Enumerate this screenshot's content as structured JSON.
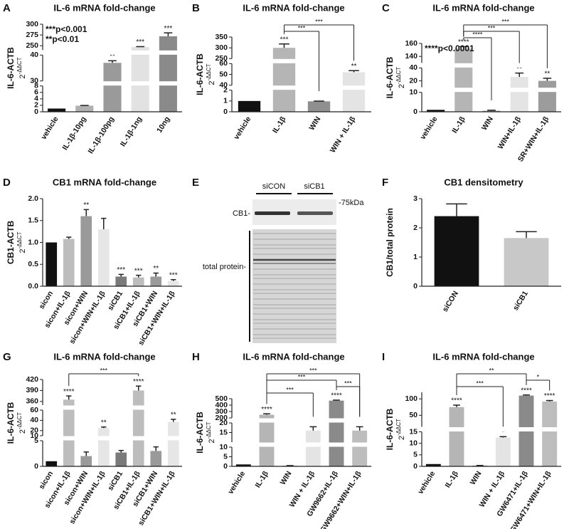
{
  "chart_data": [
    {
      "type": "bar",
      "panel": "A",
      "title": "IL-6 mRNA fold-change",
      "ylabel": "IL-6-ACTB",
      "yunit": "2",
      "yunit_exp": "-ΔΔCT",
      "categories": [
        "vehicle",
        "IL-1β-10pg",
        "IL-1β-100pg",
        "IL-1β-1ng",
        "10ng"
      ],
      "values": [
        1,
        1.9,
        37,
        247,
        272
      ],
      "errors": [
        null,
        0.05,
        0.8,
        1,
        8
      ],
      "stars": [
        null,
        null,
        "**",
        "***",
        "***"
      ],
      "colors": [
        "#111111",
        "#b0b0b0",
        "#9a9a9a",
        "#e2e2e2",
        "#8a8a8a"
      ],
      "annotations": [
        "***p<0.001",
        "**p<0.01"
      ],
      "segments": [
        {
          "ylim": [
            0,
            8
          ],
          "yticks": [
            0,
            2,
            4,
            6,
            8
          ]
        },
        {
          "ylim": [
            30,
            40
          ],
          "yticks": [
            30,
            40
          ]
        },
        {
          "ylim": [
            240,
            300
          ],
          "yticks": [
            250,
            275,
            300
          ]
        }
      ]
    },
    {
      "type": "bar",
      "panel": "B",
      "title": "IL-6 mRNA fold-change",
      "ylabel": "IL-6-ACTB",
      "yunit": "2",
      "yunit_exp": "-ΔΔCT",
      "categories": [
        "vehicle",
        "IL-1β",
        "WIN",
        "WIN + IL-1β"
      ],
      "values": [
        1,
        300,
        0.97,
        52
      ],
      "errors": [
        null,
        18,
        0.02,
        1.5
      ],
      "stars": [
        null,
        "***",
        null,
        "**"
      ],
      "colors": [
        "#111111",
        "#b5b5b5",
        "#8f8f8f",
        "#e4e4e4"
      ],
      "brackets": [
        {
          "from": 1,
          "to": 2,
          "label": "***"
        },
        {
          "from": 1,
          "to": 3,
          "label": "***"
        }
      ],
      "segments": [
        {
          "ylim": [
            0,
            2
          ],
          "yticks": [
            0,
            1,
            2
          ]
        },
        {
          "ylim": [
            40,
            60
          ],
          "yticks": [
            40,
            50,
            60
          ]
        },
        {
          "ylim": [
            250,
            350
          ],
          "yticks": [
            250,
            300,
            350
          ]
        }
      ]
    },
    {
      "type": "bar",
      "panel": "C",
      "title": "IL-6 mRNA fold-change",
      "ylabel": "IL-6-ACTB",
      "yunit": "2",
      "yunit_exp": "-ΔΔCT",
      "categories": [
        "vehicle",
        "IL-1β",
        "WIN",
        "WIN+IL-1β",
        "SR+WIN+IL-1β"
      ],
      "values": [
        1,
        152,
        0.5,
        26,
        20
      ],
      "errors": [
        null,
        3,
        0.3,
        6,
        4
      ],
      "stars": [
        null,
        "****",
        null,
        "**",
        "**"
      ],
      "colors": [
        "#111111",
        "#b5b5b5",
        "#8f8f8f",
        "#e4e4e4",
        "#9c9c9c"
      ],
      "annotations": [
        "****p<0.0001"
      ],
      "brackets": [
        {
          "from": 1,
          "to": 2,
          "label": "****"
        },
        {
          "from": 1,
          "to": 3,
          "label": "***"
        },
        {
          "from": 1,
          "to": 4,
          "label": "***"
        }
      ],
      "segments": [
        {
          "ylim": [
            0,
            10
          ],
          "yticks": [
            0,
            10
          ]
        },
        {
          "ylim": [
            10,
            40
          ],
          "yticks": [
            20,
            40
          ]
        },
        {
          "ylim": [
            130,
            160
          ],
          "yticks": [
            140,
            160
          ]
        }
      ]
    },
    {
      "type": "bar",
      "panel": "D",
      "title": "CB1 mRNA fold-change",
      "ylabel": "CB1-ACTB",
      "yunit": "2",
      "yunit_exp": "-ΔΔCT",
      "categories": [
        "sicon",
        "sicon+IL-1β",
        "sicon+WIN",
        "sicon+WIN+IL-1β",
        "siCB1",
        "siCB1+IL-1β",
        "siCB1+WIN",
        "siCB1+WIN+IL-1β"
      ],
      "values": [
        1.0,
        1.08,
        1.6,
        1.3,
        0.22,
        0.2,
        0.22,
        0.12
      ],
      "errors": [
        null,
        0.04,
        0.15,
        0.25,
        0.05,
        0.05,
        0.08,
        0.03
      ],
      "stars": [
        null,
        null,
        "**",
        null,
        "***",
        "***",
        "**",
        "***"
      ],
      "colors": [
        "#111111",
        "#bdbdbd",
        "#9a9a9a",
        "#e6e6e6",
        "#7a7a7a",
        "#bdbdbd",
        "#9a9a9a",
        "#e6e6e6"
      ],
      "ylim": [
        0,
        2
      ],
      "yticks": [
        {
          "value": 0,
          "label": "0.0"
        },
        {
          "value": 0.5,
          "label": "0.5"
        },
        {
          "value": 1,
          "label": "1.0"
        },
        {
          "value": 1.5,
          "label": "1.5"
        },
        {
          "value": 2,
          "label": "2.0"
        }
      ]
    },
    {
      "type": "bar",
      "panel": "F",
      "title": "CB1 densitometry",
      "ylabel": "CB1/total protein",
      "categories": [
        "siCON",
        "siCB1"
      ],
      "values": [
        2.4,
        1.65
      ],
      "errors": [
        0.42,
        0.22
      ],
      "colors": [
        "#111111",
        "#c8c8c8"
      ],
      "ylim": [
        0,
        3
      ],
      "yticks": [
        0,
        1,
        2,
        3
      ]
    },
    {
      "type": "bar",
      "panel": "G",
      "title": "IL-6 mRNA fold-change",
      "ylabel": "IL-6-ACTB",
      "yunit": "2",
      "yunit_exp": "-ΔΔCT",
      "categories": [
        "sicon",
        "sicon+IL-1β",
        "sicon+WIN",
        "sicon+WIN+IL-1β",
        "siCB1",
        "siCB1+IL-1β",
        "siCB1+WIN",
        "siCB1+WIN+IL-1β"
      ],
      "values": [
        1,
        365,
        2,
        25,
        2.7,
        390,
        3,
        37
      ],
      "errors": [
        null,
        10,
        0.8,
        2,
        0.4,
        12,
        0.8,
        5
      ],
      "stars": [
        null,
        "****",
        null,
        "**",
        null,
        "****",
        null,
        "**"
      ],
      "colors": [
        "#111111",
        "#bdbdbd",
        "#9a9a9a",
        "#e6e6e6",
        "#7a7a7a",
        "#bdbdbd",
        "#9a9a9a",
        "#e6e6e6"
      ],
      "brackets": [
        {
          "from": 1,
          "to": 5,
          "label": "***"
        }
      ],
      "segments": [
        {
          "ylim": [
            0,
            5
          ],
          "yticks": [
            0,
            5
          ]
        },
        {
          "ylim": [
            10,
            60
          ],
          "yticks": [
            10,
            20,
            40,
            60
          ]
        },
        {
          "ylim": [
            350,
            420
          ],
          "yticks": [
            360,
            390,
            420
          ]
        }
      ]
    },
    {
      "type": "bar",
      "panel": "H",
      "title": "IL-6 mRNA fold-change",
      "ylabel": "IL-6-ACTB",
      "yunit": "2",
      "yunit_exp": "-ΔΔCT",
      "categories": [
        "vehicle",
        "IL-1β",
        "WIN",
        "WIN + IL-1β",
        "GW9662+IL-1β",
        "GW9662+WIN+IL-1β"
      ],
      "values": [
        1,
        250,
        0.3,
        16,
        470,
        16
      ],
      "errors": [
        null,
        15,
        0.1,
        2,
        8,
        2
      ],
      "stars": [
        null,
        "****",
        null,
        "*",
        "****",
        "*"
      ],
      "colors": [
        "#111111",
        "#b5b5b5",
        "#8f8f8f",
        "#e4e4e4",
        "#8a8a8a",
        "#bdbdbd"
      ],
      "brackets": [
        {
          "from": 1,
          "to": 3,
          "label": "***"
        },
        {
          "from": 4,
          "to": 5,
          "label": "***"
        },
        {
          "from": 1,
          "to": 4,
          "label": "***"
        },
        {
          "from": 1,
          "to": 5,
          "label": "***"
        }
      ],
      "segments": [
        {
          "ylim": [
            0,
            10
          ],
          "yticks": [
            0,
            5,
            10
          ]
        },
        {
          "ylim": [
            10,
            20
          ],
          "yticks": [
            15,
            20
          ]
        },
        {
          "ylim": [
            200,
            500
          ],
          "yticks": [
            200,
            300,
            400,
            500
          ]
        }
      ]
    },
    {
      "type": "bar",
      "panel": "I",
      "title": "IL-6 mRNA fold-change",
      "ylabel": "IL-6-ACTB",
      "yunit": "2",
      "yunit_exp": "-ΔΔCT",
      "categories": [
        "vehicle",
        "IL-1β",
        "WIN",
        "WIN + IL-1β",
        "GW6471+IL-1β",
        "GW6471+WIN+IL-1β"
      ],
      "values": [
        1,
        75,
        0.3,
        12.5,
        110,
        92
      ],
      "errors": [
        null,
        6,
        0.1,
        0.4,
        2,
        3
      ],
      "stars": [
        null,
        "****",
        null,
        "*",
        "****",
        "****"
      ],
      "colors": [
        "#111111",
        "#b5b5b5",
        "#8f8f8f",
        "#e4e4e4",
        "#8a8a8a",
        "#bdbdbd"
      ],
      "brackets": [
        {
          "from": 1,
          "to": 3,
          "label": "***"
        },
        {
          "from": 4,
          "to": 5,
          "label": "*"
        },
        {
          "from": 1,
          "to": 4,
          "label": "**"
        }
      ],
      "segments": [
        {
          "ylim": [
            0,
            15
          ],
          "yticks": [
            0,
            5,
            10,
            15
          ]
        },
        {
          "ylim": [
            15,
            120
          ],
          "yticks": [
            50,
            100
          ]
        }
      ]
    }
  ],
  "blot": {
    "panel": "E",
    "lanes": [
      "siCON",
      "siCB1"
    ],
    "marker": "-75kDa",
    "band_label": "CB1-",
    "total_label": "total protein-"
  }
}
